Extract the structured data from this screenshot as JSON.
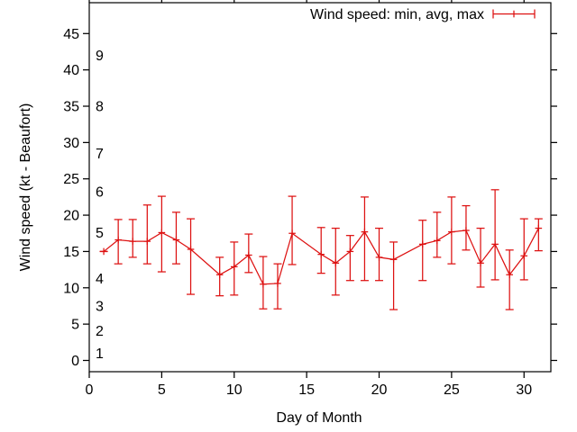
{
  "chart_data": {
    "type": "line",
    "subtype": "errorbars-min-avg-max",
    "title": "",
    "xlabel": "Day of Month",
    "ylabel": "Wind speed (kt - Beaufort)",
    "legend": {
      "label": "Wind speed: min, avg, max",
      "position": "top-right-inside"
    },
    "series_color": "#dd1111",
    "axis_color": "#000000",
    "grid": false,
    "xlim": [
      0,
      31.85
    ],
    "ylim": [
      -1.55,
      49.25
    ],
    "x_ticks": [
      0,
      5,
      10,
      15,
      20,
      25,
      30
    ],
    "y_ticks": [
      0,
      5,
      10,
      15,
      20,
      25,
      30,
      35,
      40,
      45
    ],
    "beaufort_scale": [
      {
        "force": "1",
        "kt": 1.0
      },
      {
        "force": "2",
        "kt": 4.1
      },
      {
        "force": "3",
        "kt": 7.5
      },
      {
        "force": "4",
        "kt": 11.3
      },
      {
        "force": "5",
        "kt": 17.6
      },
      {
        "force": "6",
        "kt": 23.2
      },
      {
        "force": "7",
        "kt": 28.5
      },
      {
        "force": "8",
        "kt": 35.0
      },
      {
        "force": "9",
        "kt": 42.0
      }
    ],
    "points": [
      {
        "day": 1,
        "min": 15.0,
        "avg": 15.0,
        "max": 15.0
      },
      {
        "day": 2,
        "min": 13.3,
        "avg": 16.6,
        "max": 19.4
      },
      {
        "day": 3,
        "min": 14.2,
        "avg": 16.4,
        "max": 19.4
      },
      {
        "day": 4,
        "min": 13.3,
        "avg": 16.4,
        "max": 21.4
      },
      {
        "day": 5,
        "min": 12.2,
        "avg": 17.6,
        "max": 22.6
      },
      {
        "day": 6,
        "min": 13.3,
        "avg": 16.6,
        "max": 20.4
      },
      {
        "day": 7,
        "min": 9.1,
        "avg": 15.3,
        "max": 19.5
      },
      {
        "day": 9,
        "min": 8.9,
        "avg": 11.8,
        "max": 14.2
      },
      {
        "day": 10,
        "min": 9.0,
        "avg": 12.9,
        "max": 16.3
      },
      {
        "day": 11,
        "min": 12.1,
        "avg": 14.5,
        "max": 17.4
      },
      {
        "day": 12,
        "min": 7.1,
        "avg": 10.5,
        "max": 14.3
      },
      {
        "day": 13,
        "min": 7.1,
        "avg": 10.6,
        "max": 13.3
      },
      {
        "day": 14,
        "min": 13.2,
        "avg": 17.5,
        "max": 22.6
      },
      {
        "day": 16,
        "min": 12.0,
        "avg": 14.6,
        "max": 18.3
      },
      {
        "day": 17,
        "min": 9.0,
        "avg": 13.4,
        "max": 18.2
      },
      {
        "day": 18,
        "min": 11.0,
        "avg": 15.0,
        "max": 17.2
      },
      {
        "day": 19,
        "min": 11.0,
        "avg": 17.7,
        "max": 22.5
      },
      {
        "day": 20,
        "min": 11.0,
        "avg": 14.2,
        "max": 18.2
      },
      {
        "day": 21,
        "min": 7.0,
        "avg": 13.9,
        "max": 16.3
      },
      {
        "day": 23,
        "min": 11.0,
        "avg": 16.0,
        "max": 19.3
      },
      {
        "day": 24,
        "min": 14.2,
        "avg": 16.5,
        "max": 20.4
      },
      {
        "day": 25,
        "min": 13.3,
        "avg": 17.7,
        "max": 22.5
      },
      {
        "day": 26,
        "min": 15.2,
        "avg": 17.9,
        "max": 21.3
      },
      {
        "day": 27,
        "min": 10.1,
        "avg": 13.4,
        "max": 18.2
      },
      {
        "day": 28,
        "min": 11.1,
        "avg": 16.0,
        "max": 23.5
      },
      {
        "day": 29,
        "min": 7.0,
        "avg": 11.8,
        "max": 15.2
      },
      {
        "day": 30,
        "min": 11.1,
        "avg": 14.4,
        "max": 19.5
      },
      {
        "day": 31,
        "min": 15.1,
        "avg": 18.2,
        "max": 19.5
      }
    ]
  }
}
